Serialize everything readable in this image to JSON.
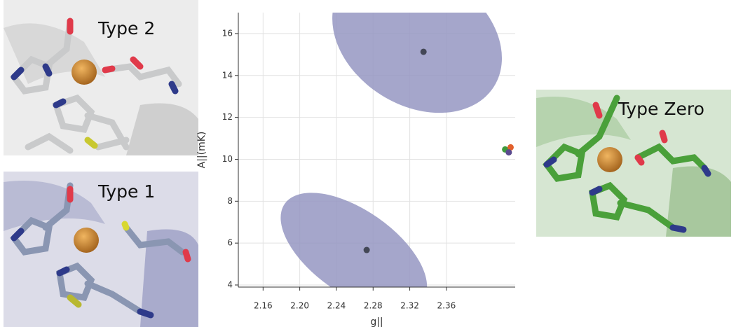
{
  "panels": {
    "top_left_label": "Type 2",
    "bottom_left_label": "Type 1",
    "right_label": "Type Zero"
  },
  "chart_data": {
    "type": "scatter",
    "x_label": "g||",
    "y_label": "A||(mK)",
    "xlim": [
      2.133,
      2.435
    ],
    "ylim": [
      3.9,
      17
    ],
    "xticks": [
      {
        "value": 2.16,
        "label": "2.16"
      },
      {
        "value": 2.2,
        "label": "2.20"
      },
      {
        "value": 2.24,
        "label": "2.24"
      },
      {
        "value": 2.28,
        "label": "2.28"
      },
      {
        "value": 2.32,
        "label": "2.32"
      },
      {
        "value": 2.36,
        "label": "2.36"
      }
    ],
    "yticks": [
      4,
      6,
      8,
      10,
      12,
      14,
      16
    ],
    "grid": true,
    "ellipse_color": "#9596c2",
    "ellipses": [
      {
        "cx": 2.328,
        "cy": 15.77,
        "width": 0.099,
        "height": 3.2,
        "angle": 32
      },
      {
        "cx": 2.259,
        "cy": 5.57,
        "width": 0.092,
        "height": 2.0,
        "angle": 35
      }
    ],
    "series": [
      {
        "color": "#434756",
        "x": [
          2.335,
          2.273
        ],
        "values": [
          15.13,
          5.67
        ]
      },
      {
        "color": "#3f9a3c",
        "x": [
          2.424
        ],
        "values": [
          10.47
        ]
      },
      {
        "color": "#e2602c",
        "x": [
          2.43
        ],
        "values": [
          10.57
        ]
      },
      {
        "color": "#5a4a8e",
        "x": [
          2.428
        ],
        "values": [
          10.33
        ]
      }
    ]
  }
}
